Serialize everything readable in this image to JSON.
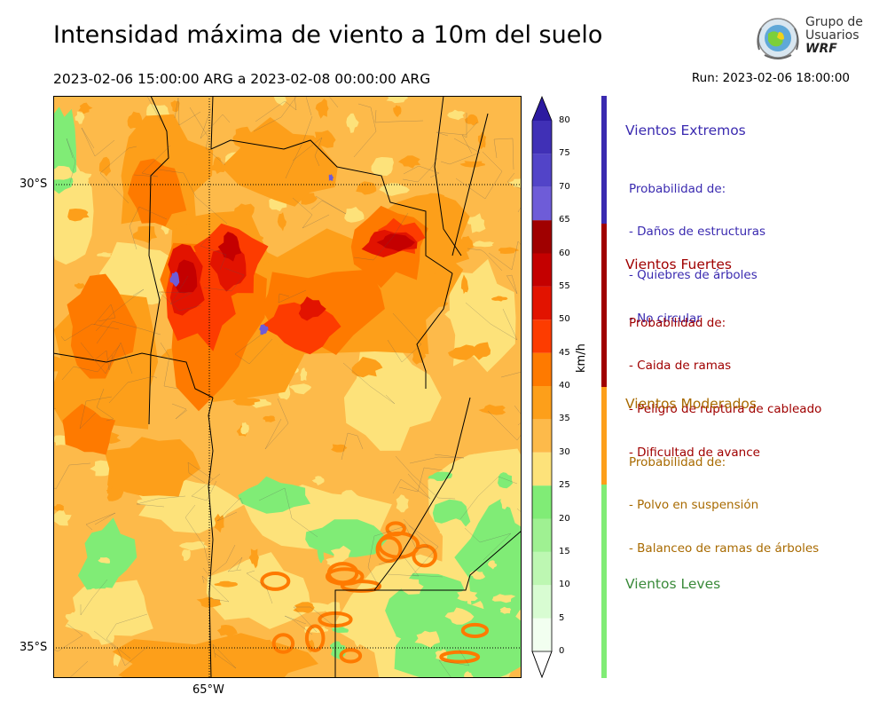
{
  "header": {
    "title": "Intensidad máxima de viento a 10m del suelo",
    "period": "2023-02-06 15:00:00 ARG  a  2023-02-08 00:00:00 ARG",
    "run": "Run: 2023-02-06 18:00:00"
  },
  "logo": {
    "line1": "Grupo de",
    "line2": "Usuarios",
    "line3": "WRF"
  },
  "map": {
    "lat_labels": [
      "30°S",
      "35°S"
    ],
    "lon_labels": [
      "65°W"
    ]
  },
  "colorbar": {
    "unit": "km/h",
    "ticks": [
      "0",
      "5",
      "10",
      "15",
      "20",
      "25",
      "30",
      "35",
      "40",
      "45",
      "50",
      "55",
      "60",
      "65",
      "70",
      "75",
      "80"
    ],
    "colors": [
      "#f2fff0",
      "#d8fcd2",
      "#bdf7b2",
      "#9ff192",
      "#80ec76",
      "#fde27a",
      "#fdba4a",
      "#fd9f1a",
      "#fe7a00",
      "#fd3c00",
      "#e21300",
      "#c40000",
      "#a00000",
      "#6e5cd8",
      "#5244c8",
      "#4030b6",
      "#2c1aa0"
    ]
  },
  "categories": [
    {
      "title": "Vientos Extremos",
      "color": "#3a2ab0",
      "lines": [
        "Probabilidad de:",
        "- Daños de estructuras",
        "- Quiebres de árboles",
        "- No circular"
      ]
    },
    {
      "title": "Vientos Fuertes",
      "color": "#a00000",
      "lines": [
        "Probabilidad de:",
        "- Caida de ramas",
        "- Peligro de ruptura de cableado",
        "- Dificultad de avance"
      ]
    },
    {
      "title": "Vientos Moderados",
      "color": "#a86a00",
      "lines": [
        "Probabilidad de:",
        "- Polvo en suspensión",
        "- Balanceo de ramas de árboles"
      ]
    },
    {
      "title": "Vientos Leves",
      "color": "#3a8a3a",
      "lines": []
    }
  ]
}
